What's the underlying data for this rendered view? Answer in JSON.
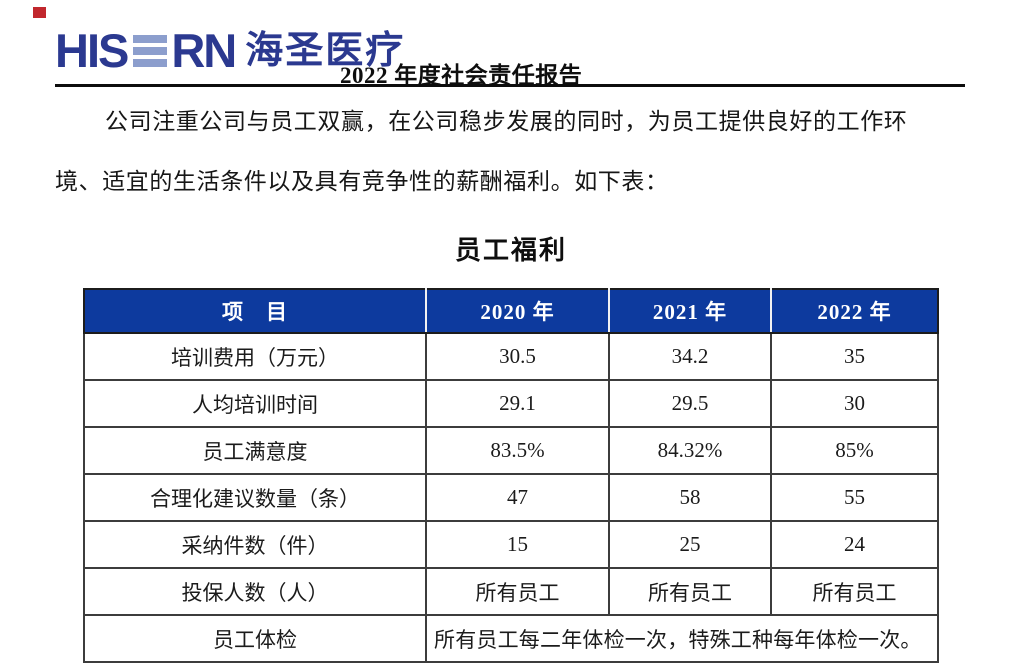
{
  "page": {
    "marker_color": "#c1272d",
    "background": "#ffffff"
  },
  "header": {
    "logo": {
      "latin_prefix": "HIS",
      "latin_suffix": "RN",
      "cjk": "海圣医疗",
      "navy_color": "#2b3990",
      "bar_color": "#8c9ecd"
    },
    "report_title": "2022 年度社会责任报告"
  },
  "paragraph": {
    "line1": "公司注重公司与员工双赢，在公司稳步发展的同时，为员工提供良好的工作环",
    "line2": "境、适宜的生活条件以及具有竞争性的薪酬福利。如下表："
  },
  "table": {
    "title": "员工福利",
    "header_bg": "#0d3a9e",
    "header_text_color": "#ffffff",
    "columns": [
      "项　目",
      "2020 年",
      "2021 年",
      "2022 年"
    ],
    "rows": [
      {
        "label": "培训费用（万元）",
        "values": [
          "30.5",
          "34.2",
          "35"
        ]
      },
      {
        "label": "人均培训时间",
        "values": [
          "29.1",
          "29.5",
          "30"
        ]
      },
      {
        "label": "员工满意度",
        "values": [
          "83.5%",
          "84.32%",
          "85%"
        ]
      },
      {
        "label": "合理化建议数量（条）",
        "values": [
          "47",
          "58",
          "55"
        ]
      },
      {
        "label": "采纳件数（件）",
        "values": [
          "15",
          "25",
          "24"
        ]
      },
      {
        "label": "投保人数（人）",
        "values": [
          "所有员工",
          "所有员工",
          "所有员工"
        ]
      },
      {
        "label": "员工体检",
        "values": [
          "所有员工每二年体检一次，特殊工种每年体检一次。"
        ],
        "colspan": 3
      }
    ]
  }
}
